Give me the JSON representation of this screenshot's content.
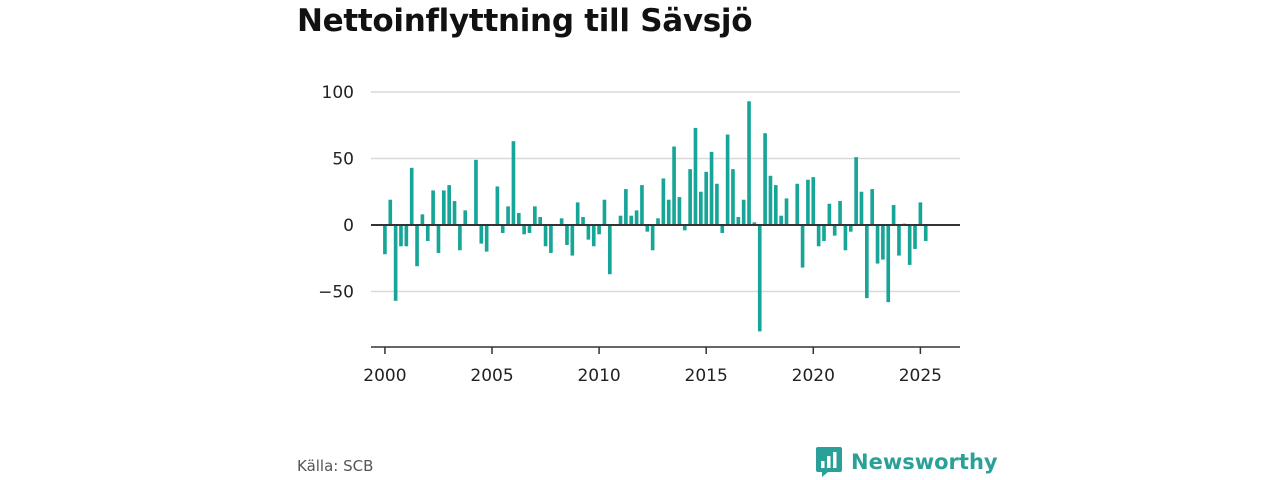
{
  "source": "Källa: SCB",
  "brand": {
    "name": "Newsworthy",
    "icon": "newsworthy-logo-icon",
    "color": "#2aa198"
  },
  "colors": {
    "bar": "#16a597",
    "grid": "#d9d9d9",
    "axis": "#333333"
  },
  "chart_data": {
    "type": "bar",
    "title": "Nettoinflyttning till Sävsjö",
    "xlabel": "",
    "ylabel": "",
    "ylim": [
      -92,
      100
    ],
    "xlim": [
      1999.35,
      2026.85
    ],
    "grid": true,
    "y_ticks": [
      100,
      50,
      0,
      -50
    ],
    "y_tick_labels": [
      "100",
      "50",
      "0",
      "−50"
    ],
    "x_ticks": [
      2000,
      2005,
      2010,
      2015,
      2020,
      2025
    ],
    "x_tick_labels": [
      "2000",
      "2005",
      "2010",
      "2015",
      "2020",
      "2025"
    ],
    "period": "quarterly",
    "x_start": 2000.0,
    "x_step": 0.25,
    "values": [
      -22,
      19,
      -57,
      -16,
      -16,
      43,
      -31,
      8,
      -12,
      26,
      -21,
      26,
      30,
      18,
      -19,
      11,
      0,
      49,
      -14,
      -20,
      0,
      29,
      -6,
      14,
      63,
      9,
      -7,
      -6,
      14,
      6,
      -16,
      -21,
      0,
      5,
      -15,
      -23,
      17,
      6,
      -11,
      -16,
      -7,
      19,
      -37,
      0,
      7,
      27,
      7,
      11,
      30,
      -5,
      -19,
      5,
      35,
      19,
      59,
      21,
      -4,
      42,
      73,
      25,
      40,
      55,
      31,
      -6,
      68,
      42,
      6,
      19,
      93,
      2,
      -80,
      69,
      37,
      30,
      7,
      20,
      0,
      31,
      -32,
      34,
      36,
      -16,
      -12,
      16,
      -8,
      18,
      -19,
      -5,
      51,
      25,
      -55,
      27,
      -29,
      -26,
      -58,
      15,
      -23,
      1,
      -30,
      -18,
      17,
      -12
    ]
  }
}
